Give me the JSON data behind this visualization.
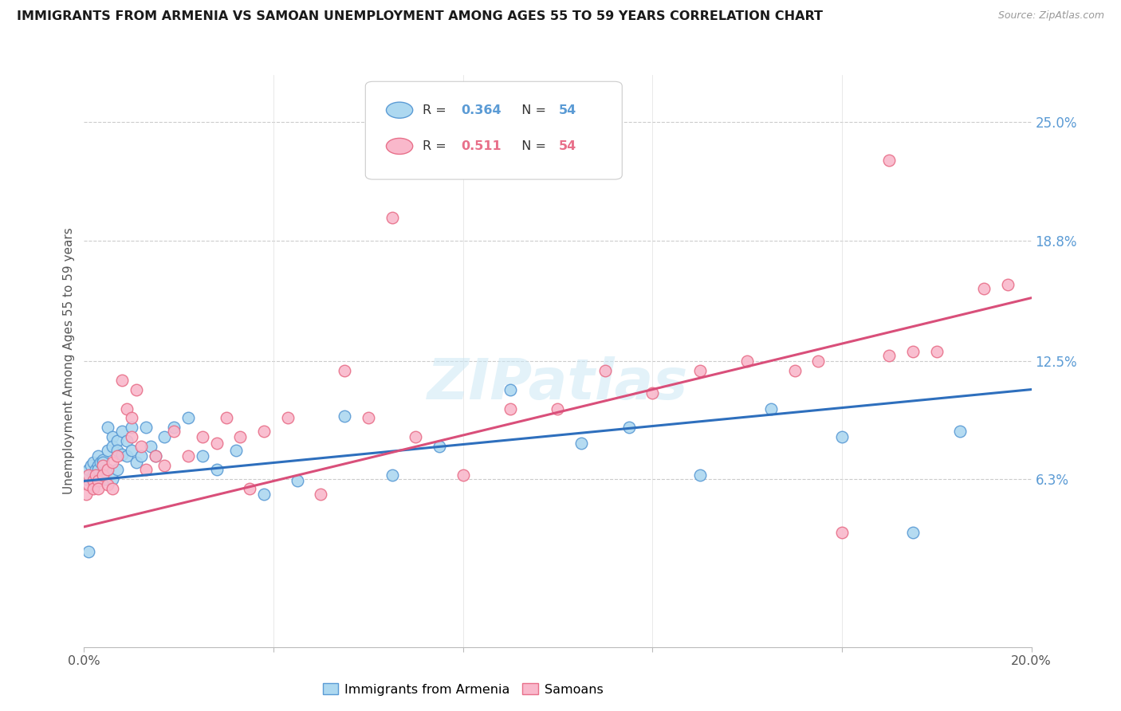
{
  "title": "IMMIGRANTS FROM ARMENIA VS SAMOAN UNEMPLOYMENT AMONG AGES 55 TO 59 YEARS CORRELATION CHART",
  "source": "Source: ZipAtlas.com",
  "ylabel": "Unemployment Among Ages 55 to 59 years",
  "xlim": [
    0.0,
    0.2
  ],
  "ylim": [
    -0.025,
    0.275
  ],
  "yticks": [
    0.063,
    0.125,
    0.188,
    0.25
  ],
  "ytick_labels": [
    "6.3%",
    "12.5%",
    "18.8%",
    "25.0%"
  ],
  "xticks": [
    0.0,
    0.04,
    0.08,
    0.12,
    0.16,
    0.2
  ],
  "xtick_labels": [
    "0.0%",
    "",
    "",
    "",
    "",
    "20.0%"
  ],
  "blue_color": "#add8f0",
  "pink_color": "#f9b8cb",
  "blue_edge_color": "#5b9bd5",
  "pink_edge_color": "#e8708a",
  "blue_line_color": "#2e6fbd",
  "pink_line_color": "#d94f7a",
  "watermark_color": "#daeef8",
  "blue_scatter_x": [
    0.0005,
    0.001,
    0.0015,
    0.002,
    0.002,
    0.0025,
    0.003,
    0.003,
    0.003,
    0.0035,
    0.004,
    0.004,
    0.004,
    0.0045,
    0.005,
    0.005,
    0.005,
    0.006,
    0.006,
    0.006,
    0.007,
    0.007,
    0.007,
    0.008,
    0.008,
    0.009,
    0.009,
    0.01,
    0.01,
    0.011,
    0.012,
    0.013,
    0.014,
    0.015,
    0.017,
    0.019,
    0.022,
    0.025,
    0.028,
    0.032,
    0.038,
    0.045,
    0.055,
    0.065,
    0.075,
    0.09,
    0.105,
    0.115,
    0.13,
    0.145,
    0.16,
    0.175,
    0.185,
    0.001
  ],
  "blue_scatter_y": [
    0.063,
    0.068,
    0.07,
    0.072,
    0.065,
    0.068,
    0.075,
    0.07,
    0.068,
    0.072,
    0.073,
    0.065,
    0.072,
    0.063,
    0.09,
    0.078,
    0.068,
    0.085,
    0.08,
    0.063,
    0.083,
    0.078,
    0.068,
    0.088,
    0.076,
    0.083,
    0.075,
    0.09,
    0.078,
    0.072,
    0.075,
    0.09,
    0.08,
    0.075,
    0.085,
    0.09,
    0.095,
    0.075,
    0.068,
    0.078,
    0.055,
    0.062,
    0.096,
    0.065,
    0.08,
    0.11,
    0.082,
    0.09,
    0.065,
    0.1,
    0.085,
    0.035,
    0.088,
    0.025
  ],
  "pink_scatter_x": [
    0.0005,
    0.001,
    0.001,
    0.002,
    0.002,
    0.0025,
    0.003,
    0.003,
    0.004,
    0.004,
    0.005,
    0.005,
    0.006,
    0.006,
    0.007,
    0.008,
    0.009,
    0.01,
    0.01,
    0.011,
    0.012,
    0.013,
    0.015,
    0.017,
    0.019,
    0.022,
    0.025,
    0.028,
    0.03,
    0.033,
    0.038,
    0.043,
    0.05,
    0.06,
    0.07,
    0.08,
    0.09,
    0.1,
    0.11,
    0.12,
    0.13,
    0.14,
    0.15,
    0.155,
    0.16,
    0.17,
    0.175,
    0.18,
    0.19,
    0.195,
    0.035,
    0.055,
    0.065,
    0.17
  ],
  "pink_scatter_y": [
    0.055,
    0.06,
    0.065,
    0.062,
    0.058,
    0.065,
    0.062,
    0.058,
    0.07,
    0.065,
    0.068,
    0.06,
    0.072,
    0.058,
    0.075,
    0.115,
    0.1,
    0.085,
    0.095,
    0.11,
    0.08,
    0.068,
    0.075,
    0.07,
    0.088,
    0.075,
    0.085,
    0.082,
    0.095,
    0.085,
    0.088,
    0.095,
    0.055,
    0.095,
    0.085,
    0.065,
    0.1,
    0.1,
    0.12,
    0.108,
    0.12,
    0.125,
    0.12,
    0.125,
    0.035,
    0.128,
    0.13,
    0.13,
    0.163,
    0.165,
    0.058,
    0.12,
    0.2,
    0.23
  ],
  "blue_trend_x": [
    0.0,
    0.2
  ],
  "blue_trend_y": [
    0.062,
    0.11
  ],
  "pink_trend_x": [
    0.0,
    0.2
  ],
  "pink_trend_y": [
    0.038,
    0.158
  ]
}
